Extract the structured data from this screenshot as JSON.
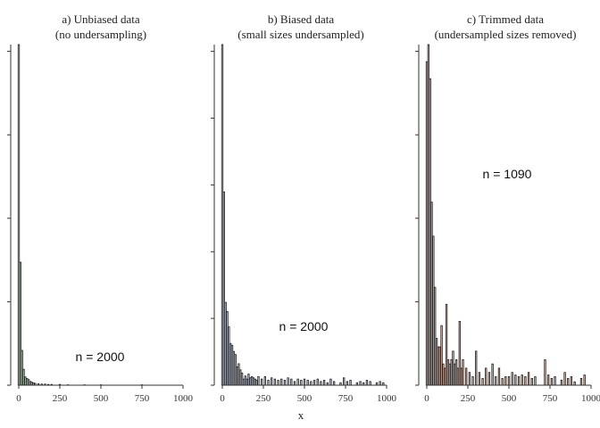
{
  "chart_data": [
    {
      "type": "bar",
      "title": "a) Unbiased data",
      "subtitle": "(no undersampling)",
      "annotation": "n = 2000",
      "xlim": [
        0,
        1000
      ],
      "xticks": [
        0,
        250,
        500,
        750,
        1000
      ],
      "ylim": [
        0,
        900
      ],
      "color": "#d9efd9",
      "x": [
        0,
        10,
        20,
        30,
        40,
        50,
        60,
        70,
        80,
        90,
        100,
        120,
        140,
        160,
        180,
        200,
        250,
        300,
        400,
        500,
        750
      ],
      "values": [
        900,
        325,
        92,
        42,
        22,
        18,
        15,
        10,
        8,
        6,
        5,
        4,
        3,
        3,
        2,
        2,
        2,
        1,
        1,
        1,
        1
      ]
    },
    {
      "type": "bar",
      "title": "b) Biased data",
      "subtitle": "(small sizes undersampled)",
      "annotation": "n = 2000",
      "xlim": [
        0,
        1000
      ],
      "xticks": [
        0,
        250,
        500,
        750,
        1000
      ],
      "ylim": [
        0,
        555
      ],
      "color": "#dde3f5",
      "x": [
        0,
        10,
        20,
        30,
        40,
        50,
        60,
        70,
        80,
        90,
        100,
        110,
        120,
        130,
        140,
        150,
        160,
        170,
        180,
        190,
        200,
        210,
        220,
        240,
        260,
        280,
        300,
        320,
        340,
        360,
        380,
        400,
        420,
        440,
        460,
        480,
        500,
        520,
        540,
        560,
        580,
        600,
        620,
        640,
        660,
        680,
        720,
        740,
        760,
        780,
        820,
        840,
        860,
        880,
        900,
        940,
        960,
        980
      ],
      "values": [
        555,
        315,
        135,
        120,
        95,
        68,
        65,
        55,
        50,
        30,
        35,
        25,
        20,
        10,
        15,
        10,
        18,
        12,
        14,
        12,
        10,
        8,
        14,
        10,
        14,
        8,
        12,
        10,
        8,
        10,
        8,
        12,
        10,
        6,
        10,
        8,
        10,
        8,
        6,
        8,
        10,
        6,
        8,
        4,
        10,
        6,
        4,
        12,
        6,
        8,
        4,
        6,
        4,
        8,
        6,
        4,
        6,
        4
      ]
    },
    {
      "type": "bar",
      "title": "c) Trimmed data",
      "subtitle": "(undersampled sizes removed)",
      "annotation": "n = 1090",
      "xlim": [
        0,
        1000
      ],
      "xticks": [
        0,
        250,
        500,
        750,
        1000
      ],
      "ylim": [
        0,
        400
      ],
      "color": "#f5d0c0",
      "x": [
        0,
        10,
        20,
        30,
        40,
        50,
        60,
        70,
        80,
        90,
        100,
        110,
        120,
        130,
        140,
        150,
        160,
        170,
        180,
        190,
        200,
        210,
        220,
        240,
        260,
        280,
        300,
        320,
        340,
        360,
        380,
        400,
        420,
        440,
        460,
        480,
        500,
        520,
        540,
        560,
        580,
        600,
        620,
        640,
        660,
        720,
        740,
        760,
        780,
        820,
        840,
        860,
        880,
        900,
        940,
        960
      ],
      "values": [
        380,
        400,
        360,
        215,
        175,
        115,
        55,
        45,
        45,
        70,
        25,
        20,
        95,
        30,
        25,
        30,
        40,
        25,
        30,
        20,
        75,
        20,
        30,
        20,
        15,
        10,
        40,
        15,
        8,
        20,
        15,
        25,
        10,
        20,
        8,
        10,
        10,
        15,
        12,
        10,
        12,
        10,
        15,
        8,
        10,
        30,
        12,
        8,
        10,
        6,
        15,
        8,
        10,
        4,
        8,
        12
      ]
    }
  ],
  "xlabel": "x"
}
